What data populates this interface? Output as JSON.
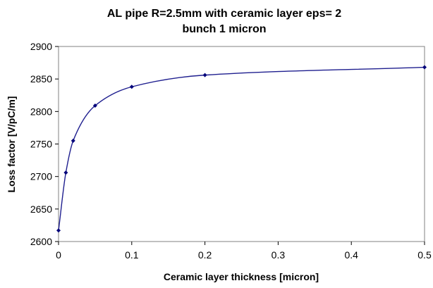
{
  "chart_data": {
    "type": "line",
    "title": "AL pipe R=2.5mm with ceramic layer eps= 2",
    "subtitle": "bunch 1 micron",
    "xlabel": "Ceramic layer thickness [micron]",
    "ylabel": "Loss factor [V/pC/m]",
    "xlim": [
      0,
      0.5
    ],
    "ylim": [
      2600,
      2900
    ],
    "xticks": [
      "0",
      "0.1",
      "0.2",
      "0.3",
      "0.4",
      "0.5"
    ],
    "yticks": [
      "2600",
      "2650",
      "2700",
      "2750",
      "2800",
      "2850",
      "2900"
    ],
    "grid": false,
    "legend": "none",
    "series": [
      {
        "color": "#1f1f8f",
        "marker_color": "#00007a",
        "x": [
          0,
          0.01,
          0.02,
          0.05,
          0.1,
          0.2,
          0.5
        ],
        "y": [
          2617,
          2706,
          2755,
          2809,
          2838,
          2856,
          2868
        ]
      }
    ]
  }
}
